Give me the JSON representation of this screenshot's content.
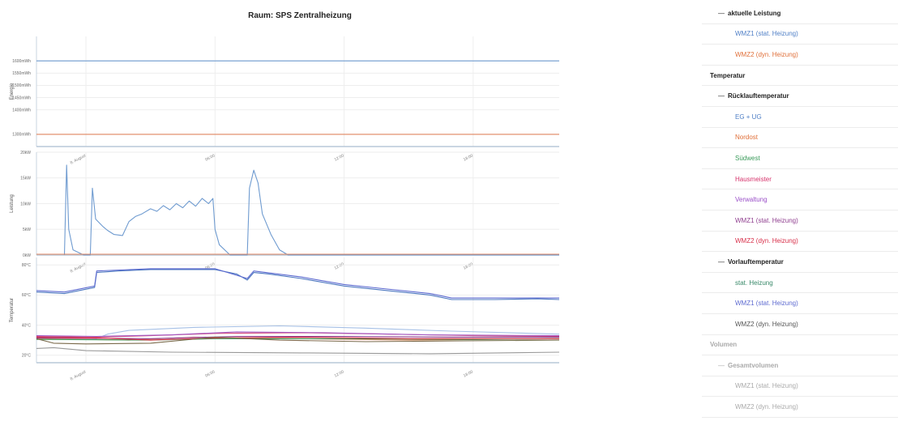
{
  "title": "Raum: SPS Zentralheizung",
  "chart_data": [
    {
      "type": "line",
      "ylabel": "Energie",
      "ylim": [
        1250,
        1700
      ],
      "yticks": [
        {
          "v": 1300,
          "label": "1300mWh"
        },
        {
          "v": 1400,
          "label": "1400mWh"
        },
        {
          "v": 1450,
          "label": "1450mWh"
        },
        {
          "v": 1500,
          "label": "1500mWh"
        },
        {
          "v": 1550,
          "label": "1550mWh"
        },
        {
          "v": 1600,
          "label": "1600mWh"
        }
      ],
      "xticks": [
        {
          "t": 0,
          "label": "8. August"
        },
        {
          "t": 6,
          "label": "06:00"
        },
        {
          "t": 12,
          "label": "12:00"
        },
        {
          "t": 18,
          "label": "18:00"
        }
      ],
      "series": [
        {
          "name": "WMZ1 (stat. Heizung)",
          "color": "#6f9bd0",
          "points": [
            [
              -2.3,
              1600
            ],
            [
              22,
              1600
            ]
          ]
        },
        {
          "name": "WMZ2 (dyn. Heizung)",
          "color": "#e08660",
          "points": [
            [
              -2.3,
              1300
            ],
            [
              22,
              1300
            ]
          ]
        }
      ]
    },
    {
      "type": "line",
      "ylabel": "Leistung",
      "ylim": [
        0,
        20
      ],
      "yticks": [
        {
          "v": 0,
          "label": "0kW"
        },
        {
          "v": 5,
          "label": "5kW"
        },
        {
          "v": 10,
          "label": "10kW"
        },
        {
          "v": 15,
          "label": "15kW"
        },
        {
          "v": 20,
          "label": "20kW"
        }
      ],
      "xticks": [
        {
          "t": 0,
          "label": "8. August"
        },
        {
          "t": 6,
          "label": "06:00"
        },
        {
          "t": 12,
          "label": "12:00"
        },
        {
          "t": 18,
          "label": "18:00"
        }
      ],
      "series": [
        {
          "name": "WMZ1 (stat. Heizung)",
          "color": "#6f9bd0",
          "points": [
            [
              -1.0,
              0
            ],
            [
              -0.9,
              17.5
            ],
            [
              -0.8,
              5
            ],
            [
              -0.6,
              1
            ],
            [
              -0.1,
              0
            ],
            [
              0.2,
              0
            ],
            [
              0.3,
              13
            ],
            [
              0.45,
              7
            ],
            [
              0.8,
              5.5
            ],
            [
              1.0,
              4.8
            ],
            [
              1.3,
              4
            ],
            [
              1.7,
              3.8
            ],
            [
              2.0,
              6.5
            ],
            [
              2.3,
              7.5
            ],
            [
              2.6,
              8
            ],
            [
              3.0,
              9
            ],
            [
              3.3,
              8.5
            ],
            [
              3.6,
              9.6
            ],
            [
              3.9,
              8.8
            ],
            [
              4.2,
              10
            ],
            [
              4.5,
              9.2
            ],
            [
              4.8,
              10.5
            ],
            [
              5.1,
              9.5
            ],
            [
              5.4,
              11
            ],
            [
              5.7,
              10
            ],
            [
              5.9,
              11
            ],
            [
              6.0,
              5
            ],
            [
              6.2,
              2
            ],
            [
              6.7,
              0
            ],
            [
              7.5,
              0
            ],
            [
              7.6,
              13
            ],
            [
              7.8,
              16.5
            ],
            [
              8.0,
              14
            ],
            [
              8.2,
              8
            ],
            [
              8.6,
              4
            ],
            [
              9.0,
              1
            ],
            [
              9.4,
              0
            ],
            [
              22,
              0
            ]
          ]
        },
        {
          "name": "WMZ2 (dyn. Heizung)",
          "color": "#e08660",
          "points": [
            [
              -2.3,
              0.15
            ],
            [
              22,
              0.15
            ]
          ]
        }
      ]
    },
    {
      "type": "line",
      "ylabel": "Temperatur",
      "ylim": [
        15,
        85
      ],
      "yticks": [
        {
          "v": 20,
          "label": "20°C"
        },
        {
          "v": 40,
          "label": "40°C"
        },
        {
          "v": 60,
          "label": "60°C"
        },
        {
          "v": 80,
          "label": "80°C"
        }
      ],
      "xticks": [
        {
          "t": 0,
          "label": "8. August"
        },
        {
          "t": 6,
          "label": "06:00"
        },
        {
          "t": 12,
          "label": "12:00"
        },
        {
          "t": 18,
          "label": "18:00"
        }
      ],
      "series": [
        {
          "name": "stat. Heizung",
          "color": "#4d78c0",
          "points": [
            [
              -2.3,
              62
            ],
            [
              -1.0,
              61
            ],
            [
              0.4,
              65
            ],
            [
              0.5,
              75
            ],
            [
              1.5,
              76
            ],
            [
              3.0,
              77
            ],
            [
              6.0,
              77
            ],
            [
              7.0,
              74
            ],
            [
              7.5,
              70
            ],
            [
              7.8,
              75
            ],
            [
              8.5,
              74
            ],
            [
              10.0,
              71
            ],
            [
              12.0,
              66
            ],
            [
              14.0,
              63
            ],
            [
              16.0,
              60
            ],
            [
              17.0,
              57
            ],
            [
              19.0,
              57
            ],
            [
              21.0,
              57.5
            ],
            [
              22,
              57
            ]
          ]
        },
        {
          "name": "WMZ1 (stat. Heizung)",
          "color": "#5d6ad0",
          "points": [
            [
              -2.3,
              63
            ],
            [
              -1.0,
              62
            ],
            [
              0.4,
              66
            ],
            [
              0.5,
              76
            ],
            [
              3.0,
              77.5
            ],
            [
              6.0,
              77.5
            ],
            [
              7.5,
              71
            ],
            [
              7.8,
              76
            ],
            [
              10.0,
              72
            ],
            [
              12.0,
              67
            ],
            [
              14.0,
              64
            ],
            [
              16.0,
              61
            ],
            [
              17.0,
              58
            ],
            [
              22,
              58
            ]
          ]
        },
        {
          "name": "EG + UG",
          "color": "#a6c0e6",
          "points": [
            [
              -2.3,
              33
            ],
            [
              0.5,
              31
            ],
            [
              1.0,
              34
            ],
            [
              2.0,
              36.5
            ],
            [
              5.0,
              38.5
            ],
            [
              9.0,
              39.5
            ],
            [
              13.0,
              38
            ],
            [
              17.0,
              36
            ],
            [
              22,
              34
            ]
          ]
        },
        {
          "name": "Nordost",
          "color": "#e08660",
          "points": [
            [
              -2.3,
              31
            ],
            [
              2.0,
              30
            ],
            [
              5.0,
              32
            ],
            [
              10.0,
              31
            ],
            [
              15.0,
              30
            ],
            [
              22,
              31
            ]
          ]
        },
        {
          "name": "Südwest",
          "color": "#3a9a5a",
          "points": [
            [
              -2.3,
              30.5
            ],
            [
              3.0,
              30
            ],
            [
              6.0,
              31
            ],
            [
              12.0,
              31
            ],
            [
              18.0,
              30.5
            ],
            [
              22,
              31
            ]
          ]
        },
        {
          "name": "Hausmeister",
          "color": "#d64a7a",
          "points": [
            [
              -2.3,
              32.5
            ],
            [
              0.5,
              32
            ],
            [
              3.0,
              33
            ],
            [
              6.0,
              34.5
            ],
            [
              10.0,
              35
            ],
            [
              14.0,
              34
            ],
            [
              18.0,
              33
            ],
            [
              22,
              32.5
            ]
          ]
        },
        {
          "name": "Verwaltung",
          "color": "#a35bc4",
          "points": [
            [
              -2.3,
              33
            ],
            [
              0.5,
              32.5
            ],
            [
              4.0,
              33.5
            ],
            [
              7.0,
              35.5
            ],
            [
              11.0,
              35
            ],
            [
              16.0,
              33.5
            ],
            [
              22,
              33
            ]
          ]
        },
        {
          "name": "WMZ1 (stat. Heizung)",
          "color": "#8f3e8f",
          "points": [
            [
              -2.3,
              31.5
            ],
            [
              3.0,
              31
            ],
            [
              7.0,
              32.5
            ],
            [
              12.0,
              32.5
            ],
            [
              17.0,
              32
            ],
            [
              22,
              32
            ]
          ]
        },
        {
          "name": "WMZ2 (dyn. Heizung)",
          "color": "#d8304a",
          "points": [
            [
              -2.3,
              32
            ],
            [
              0.5,
              31.5
            ],
            [
              3.0,
              30
            ],
            [
              6.0,
              31.5
            ],
            [
              10.0,
              32
            ],
            [
              15.0,
              31
            ],
            [
              22,
              31
            ]
          ]
        },
        {
          "name": "WMZ2 (dyn. Heizung)",
          "color": "#7a6a4a",
          "points": [
            [
              -2.3,
              31
            ],
            [
              -1.5,
              28
            ],
            [
              0.0,
              27.5
            ],
            [
              3.0,
              28
            ],
            [
              6.0,
              32
            ],
            [
              9.0,
              30
            ],
            [
              13.0,
              29
            ],
            [
              17.0,
              29.5
            ],
            [
              22,
              30
            ]
          ]
        },
        {
          "name": "Rücklauf",
          "color": "#999999",
          "points": [
            [
              -2.3,
              24.5
            ],
            [
              -1.5,
              25
            ],
            [
              0.0,
              23
            ],
            [
              4.0,
              22
            ],
            [
              10.0,
              21.5
            ],
            [
              16.0,
              21
            ],
            [
              22,
              22
            ]
          ]
        }
      ]
    }
  ],
  "legend": [
    {
      "label": "aktuelle Leistung",
      "level": 1,
      "color": "#222222"
    },
    {
      "label": "WMZ1 (stat. Heizung)",
      "level": 2,
      "color": "#4f7fc6"
    },
    {
      "label": "WMZ2 (dyn. Heizung)",
      "level": 2,
      "color": "#e0703a"
    },
    {
      "label": "Temperatur",
      "level": 0,
      "color": "#222222"
    },
    {
      "label": "Rücklauftemperatur",
      "level": 1,
      "color": "#222222"
    },
    {
      "label": "EG + UG",
      "level": 2,
      "color": "#4f7fc6"
    },
    {
      "label": "Nordost",
      "level": 2,
      "color": "#e0703a"
    },
    {
      "label": "Südwest",
      "level": 2,
      "color": "#3a9a5a"
    },
    {
      "label": "Hausmeister",
      "level": 2,
      "color": "#d6336c"
    },
    {
      "label": "Verwaltung",
      "level": 2,
      "color": "#9a4fc8"
    },
    {
      "label": "WMZ1 (stat. Heizung)",
      "level": 2,
      "color": "#8f3e8f"
    },
    {
      "label": "WMZ2 (dyn. Heizung)",
      "level": 2,
      "color": "#d8304a"
    },
    {
      "label": "Vorlauftemperatur",
      "level": 1,
      "color": "#222222"
    },
    {
      "label": "stat. Heizung",
      "level": 2,
      "color": "#3a8a6a"
    },
    {
      "label": "WMZ1 (stat. Heizung)",
      "level": 2,
      "color": "#5d6ad0"
    },
    {
      "label": "WMZ2 (dyn. Heizung)",
      "level": 2,
      "color": "#555555"
    },
    {
      "label": "Volumen",
      "level": 0,
      "color": "#aaaaaa"
    },
    {
      "label": "Gesamtvolumen",
      "level": 1,
      "color": "#aaaaaa"
    },
    {
      "label": "WMZ1 (stat. Heizung)",
      "level": 2,
      "color": "#aaaaaa"
    },
    {
      "label": "WMZ2 (dyn. Heizung)",
      "level": 2,
      "color": "#aaaaaa"
    }
  ]
}
